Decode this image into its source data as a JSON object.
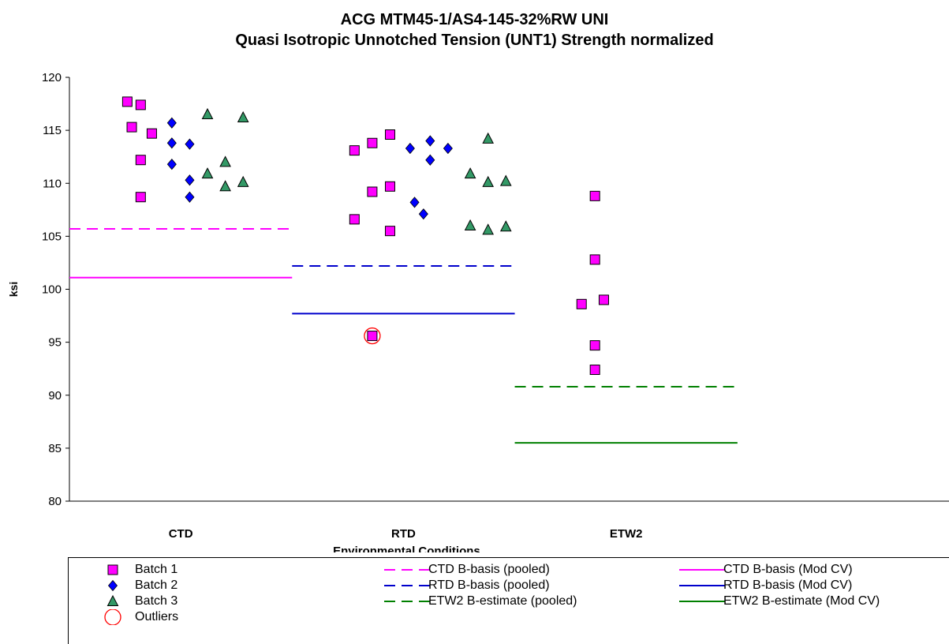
{
  "chart_data": {
    "type": "scatter",
    "title": "ACG MTM45-1/AS4-145-32%RW UNI",
    "subtitle": "Quasi Isotropic Unnotched Tension (UNT1) Strength normalized",
    "xlabel": "Environmental Conditions",
    "ylabel": "ksi",
    "ylim": [
      80,
      120
    ],
    "yticks": [
      80,
      85,
      90,
      95,
      100,
      105,
      110,
      115,
      120
    ],
    "categories": [
      "CTD",
      "RTD",
      "ETW2"
    ],
    "grid": false,
    "legend_position": "bottom",
    "series": [
      {
        "name": "Batch 1",
        "marker": "square",
        "color": "#FF00FF",
        "points": [
          {
            "x": 0.76,
            "y": 117.7
          },
          {
            "x": 0.82,
            "y": 117.4
          },
          {
            "x": 0.78,
            "y": 115.3
          },
          {
            "x": 0.87,
            "y": 114.7
          },
          {
            "x": 0.82,
            "y": 112.2
          },
          {
            "x": 0.82,
            "y": 108.7
          },
          {
            "x": 1.78,
            "y": 113.1
          },
          {
            "x": 1.86,
            "y": 113.8
          },
          {
            "x": 1.94,
            "y": 114.6
          },
          {
            "x": 1.78,
            "y": 106.6
          },
          {
            "x": 1.86,
            "y": 109.2
          },
          {
            "x": 1.94,
            "y": 109.7
          },
          {
            "x": 1.94,
            "y": 105.5
          },
          {
            "x": 1.86,
            "y": 95.6
          },
          {
            "x": 2.86,
            "y": 108.8
          },
          {
            "x": 2.86,
            "y": 102.8
          },
          {
            "x": 2.8,
            "y": 98.6
          },
          {
            "x": 2.9,
            "y": 99.0
          },
          {
            "x": 2.86,
            "y": 94.7
          },
          {
            "x": 2.86,
            "y": 92.4
          }
        ]
      },
      {
        "name": "Batch 2",
        "marker": "diamond",
        "color": "#0000FF",
        "points": [
          {
            "x": 0.96,
            "y": 115.7
          },
          {
            "x": 0.96,
            "y": 113.8
          },
          {
            "x": 1.04,
            "y": 113.7
          },
          {
            "x": 0.96,
            "y": 111.8
          },
          {
            "x": 1.04,
            "y": 110.3
          },
          {
            "x": 1.04,
            "y": 108.7
          },
          {
            "x": 2.03,
            "y": 113.3
          },
          {
            "x": 2.12,
            "y": 114.0
          },
          {
            "x": 2.2,
            "y": 113.3
          },
          {
            "x": 2.12,
            "y": 112.2
          },
          {
            "x": 2.05,
            "y": 108.2
          },
          {
            "x": 2.09,
            "y": 107.1
          }
        ]
      },
      {
        "name": "Batch 3",
        "marker": "triangle",
        "color": "#339966",
        "points": [
          {
            "x": 1.12,
            "y": 116.5
          },
          {
            "x": 1.28,
            "y": 116.2
          },
          {
            "x": 1.12,
            "y": 110.9
          },
          {
            "x": 1.2,
            "y": 112.0
          },
          {
            "x": 1.2,
            "y": 109.7
          },
          {
            "x": 1.28,
            "y": 110.1
          },
          {
            "x": 2.3,
            "y": 110.9
          },
          {
            "x": 2.38,
            "y": 114.2
          },
          {
            "x": 2.38,
            "y": 110.1
          },
          {
            "x": 2.46,
            "y": 110.2
          },
          {
            "x": 2.3,
            "y": 106.0
          },
          {
            "x": 2.38,
            "y": 105.6
          },
          {
            "x": 2.46,
            "y": 105.9
          }
        ]
      },
      {
        "name": "Outliers",
        "marker": "circle-open",
        "color": "#FF0000",
        "points": [
          {
            "x": 1.86,
            "y": 95.6
          }
        ]
      }
    ],
    "reference_lines": [
      {
        "name": "CTD B-basis (pooled)",
        "style": "dashed",
        "color": "#FF00FF",
        "x": [
          0.5,
          1.5
        ],
        "y": 105.7
      },
      {
        "name": "CTD B-basis (Mod CV)",
        "style": "solid",
        "color": "#FF00FF",
        "x": [
          0.5,
          1.5
        ],
        "y": 101.1
      },
      {
        "name": "RTD B-basis (pooled)",
        "style": "dashed",
        "color": "#0000CC",
        "x": [
          1.5,
          2.5
        ],
        "y": 102.2
      },
      {
        "name": "RTD B-basis (Mod CV)",
        "style": "solid",
        "color": "#0000CC",
        "x": [
          1.5,
          2.5
        ],
        "y": 97.7
      },
      {
        "name": "ETW2 B-estimate (pooled)",
        "style": "dashed",
        "color": "#008000",
        "x": [
          2.5,
          3.5
        ],
        "y": 90.8
      },
      {
        "name": "ETW2 B-estimate (Mod CV)",
        "style": "solid",
        "color": "#008000",
        "x": [
          2.5,
          3.5
        ],
        "y": 85.5
      }
    ]
  }
}
